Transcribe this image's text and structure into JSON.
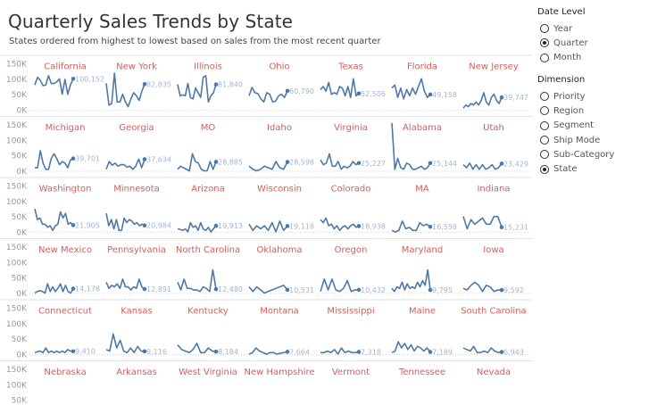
{
  "header": {
    "title": "Quarterly Sales Trends by State",
    "subtitle": "States ordered from highest to lowest based on sales from the most recent quarter"
  },
  "controls": {
    "date_level": {
      "label": "Date Level",
      "options": [
        "Year",
        "Quarter",
        "Month"
      ],
      "selected": "Quarter"
    },
    "dimension": {
      "label": "Dimension",
      "options": [
        "Priority",
        "Region",
        "Segment",
        "Ship Mode",
        "Sub-Category",
        "State"
      ],
      "selected": "State"
    }
  },
  "colors": {
    "line": "#4e79a7",
    "state_label": "#d0605e",
    "value_label": "#a3b6d0",
    "axis_text": "#999999"
  },
  "chart_data": {
    "type": "line",
    "layout": "small-multiples",
    "yticks": [
      "150K",
      "100K",
      "50K",
      "0K"
    ],
    "ylim": [
      0,
      150000
    ],
    "grid": false,
    "states": [
      {
        "name": "California",
        "last_label": "100,152",
        "values": [
          80000,
          105000,
          95000,
          78000,
          80000,
          110000,
          85000,
          85000,
          90000,
          100000,
          50000,
          98000,
          50000,
          80000,
          100152
        ]
      },
      {
        "name": "New York",
        "last_label": "82,835",
        "values": [
          85000,
          15000,
          20000,
          118000,
          25000,
          25000,
          50000,
          25000,
          10000,
          35000,
          55000,
          45000,
          30000,
          60000,
          82835
        ]
      },
      {
        "name": "Illinois",
        "last_label": "81,840",
        "values": [
          82000,
          45000,
          48000,
          45000,
          85000,
          40000,
          35000,
          70000,
          55000,
          40000,
          105000,
          110000,
          25000,
          45000,
          55000,
          81840
        ]
      },
      {
        "name": "Ohio",
        "last_label": "60,790",
        "values": [
          45000,
          72000,
          55000,
          52000,
          35000,
          25000,
          55000,
          50000,
          25000,
          28000,
          45000,
          50000,
          40000,
          60790
        ]
      },
      {
        "name": "Texas",
        "last_label": "52,506",
        "values": [
          65000,
          75000,
          60000,
          88000,
          50000,
          55000,
          50000,
          75000,
          70000,
          45000,
          75000,
          40000,
          100000,
          45000,
          52506
        ]
      },
      {
        "name": "Florida",
        "last_label": "49,158",
        "values": [
          70000,
          80000,
          40000,
          70000,
          35000,
          65000,
          45000,
          70000,
          50000,
          75000,
          100000,
          60000,
          40000,
          49158
        ]
      },
      {
        "name": "New Jersey",
        "last_label": "39,747",
        "values": [
          5000,
          15000,
          10000,
          20000,
          15000,
          25000,
          15000,
          30000,
          55000,
          25000,
          15000,
          40000,
          50000,
          30000,
          20000,
          39747
        ]
      },
      {
        "name": "Michigan",
        "last_label": "39,701",
        "values": [
          10000,
          10000,
          65000,
          25000,
          5000,
          5000,
          40000,
          55000,
          40000,
          20000,
          30000,
          25000,
          10000,
          35000,
          39701
        ]
      },
      {
        "name": "Georgia",
        "last_label": "37,634",
        "values": [
          5000,
          30000,
          18000,
          25000,
          15000,
          20000,
          20000,
          12000,
          15000,
          5000,
          15000,
          38000,
          10000,
          37634
        ]
      },
      {
        "name": "MO",
        "last_label": "28,885",
        "values": [
          5000,
          15000,
          10000,
          5000,
          0,
          55000,
          30000,
          25000,
          5000,
          0,
          0,
          30000,
          5000,
          28885
        ]
      },
      {
        "name": "Idaho",
        "last_label": "28,598",
        "values": [
          15000,
          5000,
          0,
          5000,
          15000,
          10000,
          5000,
          30000,
          10000,
          5000,
          28598
        ]
      },
      {
        "name": "Virginia",
        "last_label": "25,227",
        "values": [
          35000,
          20000,
          25000,
          55000,
          15000,
          15000,
          30000,
          5000,
          15000,
          10000,
          15000,
          30000,
          20000,
          25227
        ]
      },
      {
        "name": "Alabama",
        "last_label": "25,144",
        "values": [
          155000,
          5000,
          40000,
          10000,
          5000,
          25000,
          20000,
          5000,
          5000,
          10000,
          15000,
          5000,
          10000,
          25144
        ]
      },
      {
        "name": "Utah",
        "last_label": "23,429",
        "values": [
          20000,
          10000,
          25000,
          5000,
          20000,
          5000,
          20000,
          5000,
          10000,
          20000,
          5000,
          10000,
          23429
        ]
      },
      {
        "name": "Washington",
        "last_label": "21,905",
        "values": [
          75000,
          40000,
          45000,
          25000,
          25000,
          15000,
          20000,
          5000,
          20000,
          25000,
          65000,
          45000,
          60000,
          25000,
          30000,
          21905
        ]
      },
      {
        "name": "Minnesota",
        "last_label": "20,984",
        "values": [
          60000,
          20000,
          40000,
          10000,
          40000,
          5000,
          5000,
          45000,
          30000,
          40000,
          35000,
          25000,
          30000,
          20000,
          25000,
          20984
        ]
      },
      {
        "name": "Arizona",
        "last_label": "19,913",
        "values": [
          10000,
          8000,
          5000,
          10000,
          0,
          30000,
          15000,
          20000,
          5000,
          30000,
          10000,
          5000,
          15000,
          0,
          10000,
          19913
        ]
      },
      {
        "name": "Wisconsin",
        "last_label": "19,118",
        "values": [
          25000,
          5000,
          20000,
          10000,
          20000,
          5000,
          30000,
          0,
          35000,
          5000,
          19118
        ]
      },
      {
        "name": "Colorado",
        "last_label": "18,938",
        "values": [
          40000,
          30000,
          45000,
          20000,
          25000,
          10000,
          20000,
          5000,
          15000,
          20000,
          10000,
          20000,
          25000,
          15000,
          18938
        ]
      },
      {
        "name": "MA",
        "last_label": "16,598",
        "values": [
          5000,
          0,
          5000,
          35000,
          10000,
          15000,
          5000,
          5000,
          30000,
          20000,
          25000,
          16598
        ]
      },
      {
        "name": "Indiana",
        "last_label": "15,231",
        "values": [
          50000,
          10000,
          40000,
          25000,
          35000,
          45000,
          25000,
          25000,
          50000,
          50000,
          15231
        ]
      },
      {
        "name": "New Mexico",
        "last_label": "14,178",
        "values": [
          0,
          5000,
          8000,
          5000,
          0,
          30000,
          5000,
          20000,
          5000,
          15000,
          30000,
          5000,
          25000,
          5000,
          0,
          14178
        ]
      },
      {
        "name": "Pennsylvania",
        "last_label": "12,891",
        "values": [
          35000,
          15000,
          25000,
          20000,
          30000,
          15000,
          45000,
          20000,
          20000,
          10000,
          20000,
          15000,
          45000,
          20000,
          12891
        ]
      },
      {
        "name": "North Carolina",
        "last_label": "12,480",
        "values": [
          35000,
          10000,
          45000,
          15000,
          15000,
          10000,
          10000,
          5000,
          20000,
          15000,
          5000,
          75000,
          12480
        ]
      },
      {
        "name": "Oklahoma",
        "last_label": "10,531",
        "values": [
          20000,
          5000,
          20000,
          10000,
          0,
          5000,
          10000,
          15000,
          20000,
          25000,
          10531
        ]
      },
      {
        "name": "Oregon",
        "last_label": "10,432",
        "values": [
          5000,
          45000,
          10000,
          45000,
          10000,
          5000,
          15000,
          40000,
          5000,
          10000,
          10432
        ]
      },
      {
        "name": "Maryland",
        "last_label": "9,795",
        "values": [
          15000,
          5000,
          20000,
          15000,
          35000,
          10000,
          30000,
          15000,
          20000,
          15000,
          35000,
          20000,
          40000,
          25000,
          75000,
          9795
        ]
      },
      {
        "name": "Iowa",
        "last_label": "9,592",
        "values": [
          15000,
          10000,
          25000,
          35000,
          25000,
          5000,
          25000,
          20000,
          5000,
          10000,
          9592
        ]
      },
      {
        "name": "Connecticut",
        "last_label": "9,410",
        "values": [
          5000,
          8000,
          10000,
          5000,
          20000,
          5000,
          10000,
          5000,
          10000,
          5000,
          10000,
          5000,
          15000,
          10000,
          9410
        ]
      },
      {
        "name": "Kansas",
        "last_label": "9,116",
        "values": [
          15000,
          10000,
          65000,
          20000,
          45000,
          10000,
          5000,
          20000,
          5000,
          25000,
          10000,
          9116
        ]
      },
      {
        "name": "Kentucky",
        "last_label": "8,184",
        "values": [
          30000,
          15000,
          10000,
          5000,
          15000,
          35000,
          5000,
          5000,
          20000,
          10000,
          8184
        ]
      },
      {
        "name": "Montana",
        "last_label": "7,664",
        "values": [
          0,
          5000,
          20000,
          10000,
          5000,
          0,
          5000,
          5000,
          0,
          3000,
          5000,
          7664
        ]
      },
      {
        "name": "Mississippi",
        "last_label": "7,318",
        "values": [
          5000,
          5000,
          10000,
          5000,
          15000,
          0,
          20000,
          5000,
          10000,
          5000,
          5000,
          7318
        ]
      },
      {
        "name": "Maine",
        "last_label": "7,189",
        "values": [
          5000,
          10000,
          40000,
          20000,
          35000,
          15000,
          30000,
          10000,
          25000,
          20000,
          10000,
          20000,
          7189
        ]
      },
      {
        "name": "South Carolina",
        "last_label": "6,943",
        "values": [
          20000,
          15000,
          10000,
          25000,
          5000,
          5000,
          10000,
          5000,
          20000,
          10000,
          5000,
          6943
        ]
      },
      {
        "name": "Nebraska",
        "last_label": "",
        "values": []
      },
      {
        "name": "Arkansas",
        "last_label": "",
        "values": []
      },
      {
        "name": "West Virginia",
        "last_label": "",
        "values": []
      },
      {
        "name": "New Hampshire",
        "last_label": "",
        "values": []
      },
      {
        "name": "Vermont",
        "last_label": "",
        "values": []
      },
      {
        "name": "Tennessee",
        "last_label": "",
        "values": []
      },
      {
        "name": "Nevada",
        "last_label": "",
        "values": []
      }
    ]
  }
}
